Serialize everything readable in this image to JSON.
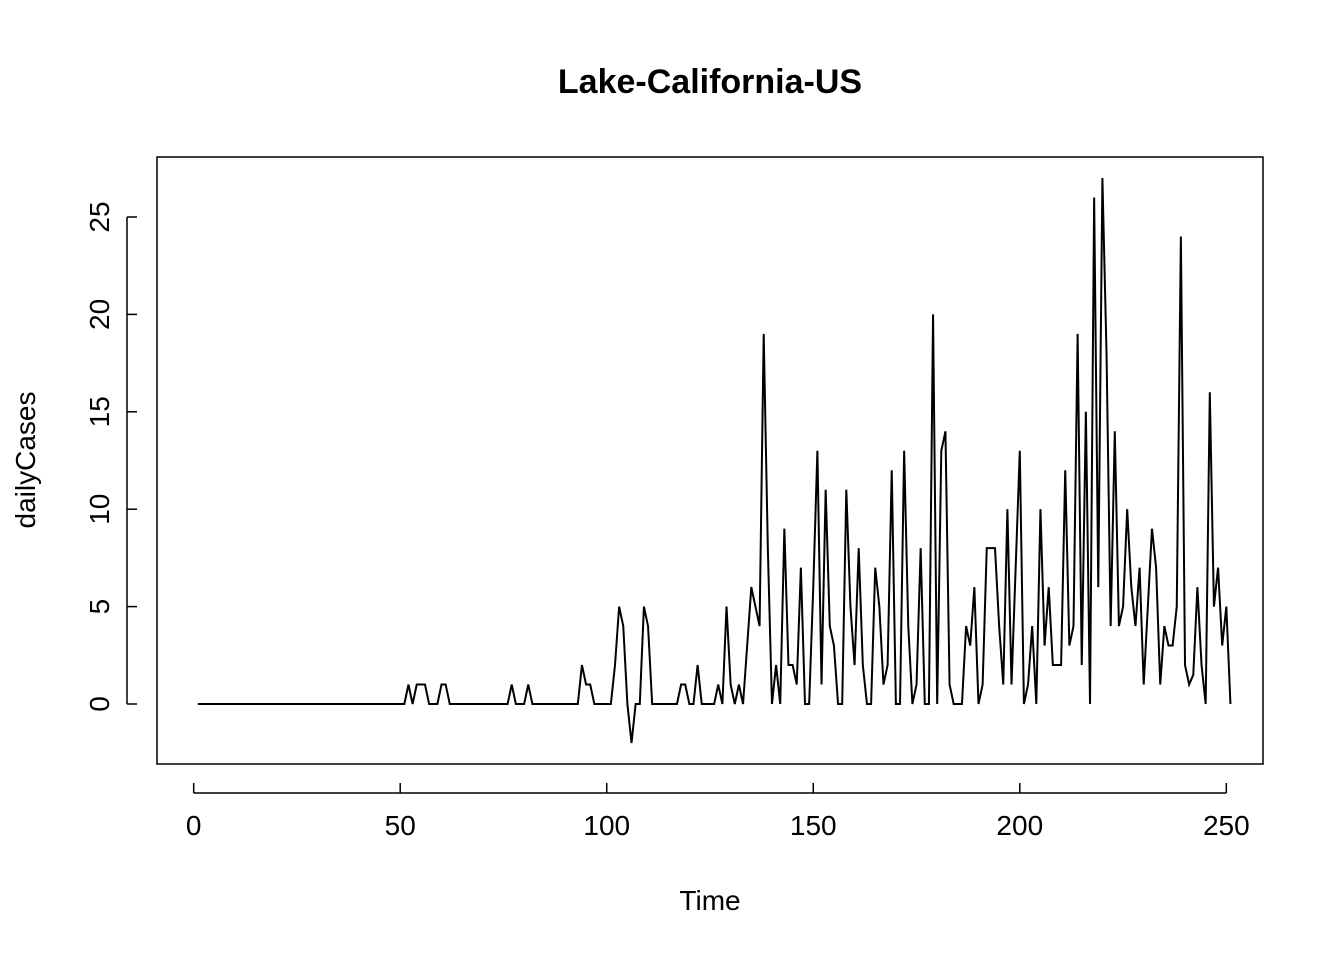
{
  "chart_data": {
    "type": "line",
    "title": "Lake-California-US",
    "xlabel": "Time",
    "ylabel": "dailyCases",
    "xlim": [
      -8.88,
      258.88
    ],
    "ylim": [
      -3.08,
      28.08
    ],
    "xticks": [
      0,
      50,
      100,
      150,
      200,
      250
    ],
    "yticks": [
      0,
      5,
      10,
      15,
      20,
      25
    ],
    "grid": false,
    "series": [
      {
        "color": "#000000",
        "x_start": 1,
        "values": [
          0,
          0,
          0,
          0,
          0,
          0,
          0,
          0,
          0,
          0,
          0,
          0,
          0,
          0,
          0,
          0,
          0,
          0,
          0,
          0,
          0,
          0,
          0,
          0,
          0,
          0,
          0,
          0,
          0,
          0,
          0,
          0,
          0,
          0,
          0,
          0,
          0,
          0,
          0,
          0,
          0,
          0,
          0,
          0,
          0,
          0,
          0,
          0,
          0,
          0,
          0,
          1,
          0,
          1,
          1,
          1,
          0,
          0,
          0,
          1,
          1,
          0,
          0,
          0,
          0,
          0,
          0,
          0,
          0,
          0,
          0,
          0,
          0,
          0,
          0,
          0,
          1,
          0,
          0,
          0,
          1,
          0,
          0,
          0,
          0,
          0,
          0,
          0,
          0,
          0,
          0,
          0,
          0,
          2,
          1,
          1,
          0,
          0,
          0,
          0,
          0,
          2,
          5,
          4,
          0,
          -2,
          0,
          0,
          5,
          4,
          0,
          0,
          0,
          0,
          0,
          0,
          0,
          1,
          1,
          0,
          0,
          2,
          0,
          0,
          0,
          0,
          1,
          0,
          5,
          1,
          0,
          1,
          0,
          3,
          6,
          5,
          4,
          19,
          8,
          0,
          2,
          0,
          9,
          2,
          2,
          1,
          7,
          0,
          0,
          6,
          13,
          1,
          11,
          4,
          3,
          0,
          0,
          11,
          5,
          2,
          8,
          2,
          0,
          0,
          7,
          5,
          1,
          2,
          12,
          0,
          0,
          13,
          4,
          0,
          1,
          8,
          0,
          0,
          20,
          0,
          13,
          14,
          1,
          0,
          0,
          0,
          4,
          3,
          6,
          0,
          1,
          8,
          8,
          8,
          4,
          1,
          10,
          1,
          7,
          13,
          0,
          1,
          4,
          0,
          10,
          3,
          6,
          2,
          2,
          2,
          12,
          3,
          4,
          19,
          2,
          15,
          0,
          26,
          6,
          27,
          18,
          4,
          14,
          4,
          5,
          10,
          6,
          4,
          7,
          1,
          5,
          9,
          7,
          1,
          4,
          3,
          3,
          5,
          24,
          2,
          1,
          1.5,
          6,
          2,
          0,
          16,
          5,
          7,
          3,
          5,
          0
        ]
      }
    ]
  }
}
